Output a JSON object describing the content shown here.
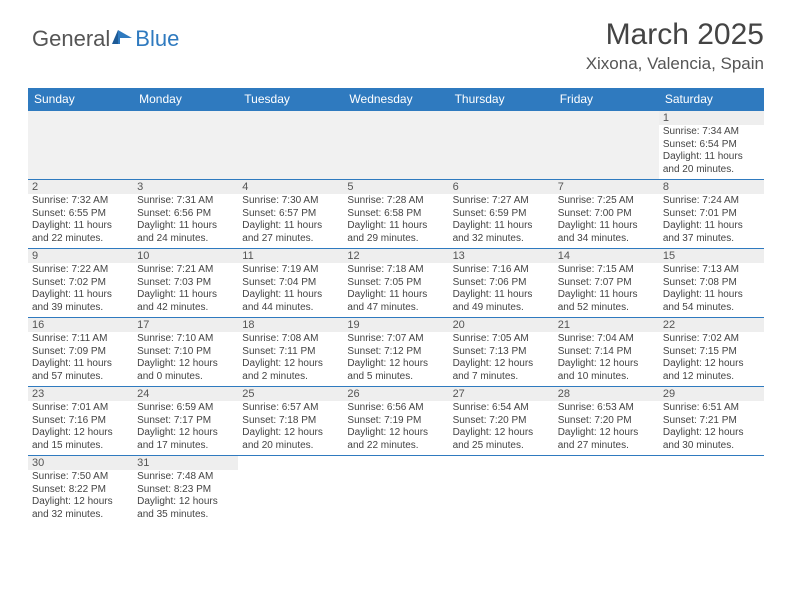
{
  "brand": {
    "word1": "General",
    "word2": "Blue"
  },
  "title": "March 2025",
  "location": "Xixona, Valencia, Spain",
  "colors": {
    "accent": "#2f7abf",
    "header_bg": "#2f7abf",
    "daynum_bg": "#eeeeee",
    "text": "#444444"
  },
  "day_names": [
    "Sunday",
    "Monday",
    "Tuesday",
    "Wednesday",
    "Thursday",
    "Friday",
    "Saturday"
  ],
  "weeks": [
    [
      null,
      null,
      null,
      null,
      null,
      null,
      {
        "n": "1",
        "sr": "Sunrise: 7:34 AM",
        "ss": "Sunset: 6:54 PM",
        "d1": "Daylight: 11 hours",
        "d2": "and 20 minutes."
      }
    ],
    [
      {
        "n": "2",
        "sr": "Sunrise: 7:32 AM",
        "ss": "Sunset: 6:55 PM",
        "d1": "Daylight: 11 hours",
        "d2": "and 22 minutes."
      },
      {
        "n": "3",
        "sr": "Sunrise: 7:31 AM",
        "ss": "Sunset: 6:56 PM",
        "d1": "Daylight: 11 hours",
        "d2": "and 24 minutes."
      },
      {
        "n": "4",
        "sr": "Sunrise: 7:30 AM",
        "ss": "Sunset: 6:57 PM",
        "d1": "Daylight: 11 hours",
        "d2": "and 27 minutes."
      },
      {
        "n": "5",
        "sr": "Sunrise: 7:28 AM",
        "ss": "Sunset: 6:58 PM",
        "d1": "Daylight: 11 hours",
        "d2": "and 29 minutes."
      },
      {
        "n": "6",
        "sr": "Sunrise: 7:27 AM",
        "ss": "Sunset: 6:59 PM",
        "d1": "Daylight: 11 hours",
        "d2": "and 32 minutes."
      },
      {
        "n": "7",
        "sr": "Sunrise: 7:25 AM",
        "ss": "Sunset: 7:00 PM",
        "d1": "Daylight: 11 hours",
        "d2": "and 34 minutes."
      },
      {
        "n": "8",
        "sr": "Sunrise: 7:24 AM",
        "ss": "Sunset: 7:01 PM",
        "d1": "Daylight: 11 hours",
        "d2": "and 37 minutes."
      }
    ],
    [
      {
        "n": "9",
        "sr": "Sunrise: 7:22 AM",
        "ss": "Sunset: 7:02 PM",
        "d1": "Daylight: 11 hours",
        "d2": "and 39 minutes."
      },
      {
        "n": "10",
        "sr": "Sunrise: 7:21 AM",
        "ss": "Sunset: 7:03 PM",
        "d1": "Daylight: 11 hours",
        "d2": "and 42 minutes."
      },
      {
        "n": "11",
        "sr": "Sunrise: 7:19 AM",
        "ss": "Sunset: 7:04 PM",
        "d1": "Daylight: 11 hours",
        "d2": "and 44 minutes."
      },
      {
        "n": "12",
        "sr": "Sunrise: 7:18 AM",
        "ss": "Sunset: 7:05 PM",
        "d1": "Daylight: 11 hours",
        "d2": "and 47 minutes."
      },
      {
        "n": "13",
        "sr": "Sunrise: 7:16 AM",
        "ss": "Sunset: 7:06 PM",
        "d1": "Daylight: 11 hours",
        "d2": "and 49 minutes."
      },
      {
        "n": "14",
        "sr": "Sunrise: 7:15 AM",
        "ss": "Sunset: 7:07 PM",
        "d1": "Daylight: 11 hours",
        "d2": "and 52 minutes."
      },
      {
        "n": "15",
        "sr": "Sunrise: 7:13 AM",
        "ss": "Sunset: 7:08 PM",
        "d1": "Daylight: 11 hours",
        "d2": "and 54 minutes."
      }
    ],
    [
      {
        "n": "16",
        "sr": "Sunrise: 7:11 AM",
        "ss": "Sunset: 7:09 PM",
        "d1": "Daylight: 11 hours",
        "d2": "and 57 minutes."
      },
      {
        "n": "17",
        "sr": "Sunrise: 7:10 AM",
        "ss": "Sunset: 7:10 PM",
        "d1": "Daylight: 12 hours",
        "d2": "and 0 minutes."
      },
      {
        "n": "18",
        "sr": "Sunrise: 7:08 AM",
        "ss": "Sunset: 7:11 PM",
        "d1": "Daylight: 12 hours",
        "d2": "and 2 minutes."
      },
      {
        "n": "19",
        "sr": "Sunrise: 7:07 AM",
        "ss": "Sunset: 7:12 PM",
        "d1": "Daylight: 12 hours",
        "d2": "and 5 minutes."
      },
      {
        "n": "20",
        "sr": "Sunrise: 7:05 AM",
        "ss": "Sunset: 7:13 PM",
        "d1": "Daylight: 12 hours",
        "d2": "and 7 minutes."
      },
      {
        "n": "21",
        "sr": "Sunrise: 7:04 AM",
        "ss": "Sunset: 7:14 PM",
        "d1": "Daylight: 12 hours",
        "d2": "and 10 minutes."
      },
      {
        "n": "22",
        "sr": "Sunrise: 7:02 AM",
        "ss": "Sunset: 7:15 PM",
        "d1": "Daylight: 12 hours",
        "d2": "and 12 minutes."
      }
    ],
    [
      {
        "n": "23",
        "sr": "Sunrise: 7:01 AM",
        "ss": "Sunset: 7:16 PM",
        "d1": "Daylight: 12 hours",
        "d2": "and 15 minutes."
      },
      {
        "n": "24",
        "sr": "Sunrise: 6:59 AM",
        "ss": "Sunset: 7:17 PM",
        "d1": "Daylight: 12 hours",
        "d2": "and 17 minutes."
      },
      {
        "n": "25",
        "sr": "Sunrise: 6:57 AM",
        "ss": "Sunset: 7:18 PM",
        "d1": "Daylight: 12 hours",
        "d2": "and 20 minutes."
      },
      {
        "n": "26",
        "sr": "Sunrise: 6:56 AM",
        "ss": "Sunset: 7:19 PM",
        "d1": "Daylight: 12 hours",
        "d2": "and 22 minutes."
      },
      {
        "n": "27",
        "sr": "Sunrise: 6:54 AM",
        "ss": "Sunset: 7:20 PM",
        "d1": "Daylight: 12 hours",
        "d2": "and 25 minutes."
      },
      {
        "n": "28",
        "sr": "Sunrise: 6:53 AM",
        "ss": "Sunset: 7:20 PM",
        "d1": "Daylight: 12 hours",
        "d2": "and 27 minutes."
      },
      {
        "n": "29",
        "sr": "Sunrise: 6:51 AM",
        "ss": "Sunset: 7:21 PM",
        "d1": "Daylight: 12 hours",
        "d2": "and 30 minutes."
      }
    ],
    [
      {
        "n": "30",
        "sr": "Sunrise: 7:50 AM",
        "ss": "Sunset: 8:22 PM",
        "d1": "Daylight: 12 hours",
        "d2": "and 32 minutes."
      },
      {
        "n": "31",
        "sr": "Sunrise: 7:48 AM",
        "ss": "Sunset: 8:23 PM",
        "d1": "Daylight: 12 hours",
        "d2": "and 35 minutes."
      },
      null,
      null,
      null,
      null,
      null
    ]
  ]
}
